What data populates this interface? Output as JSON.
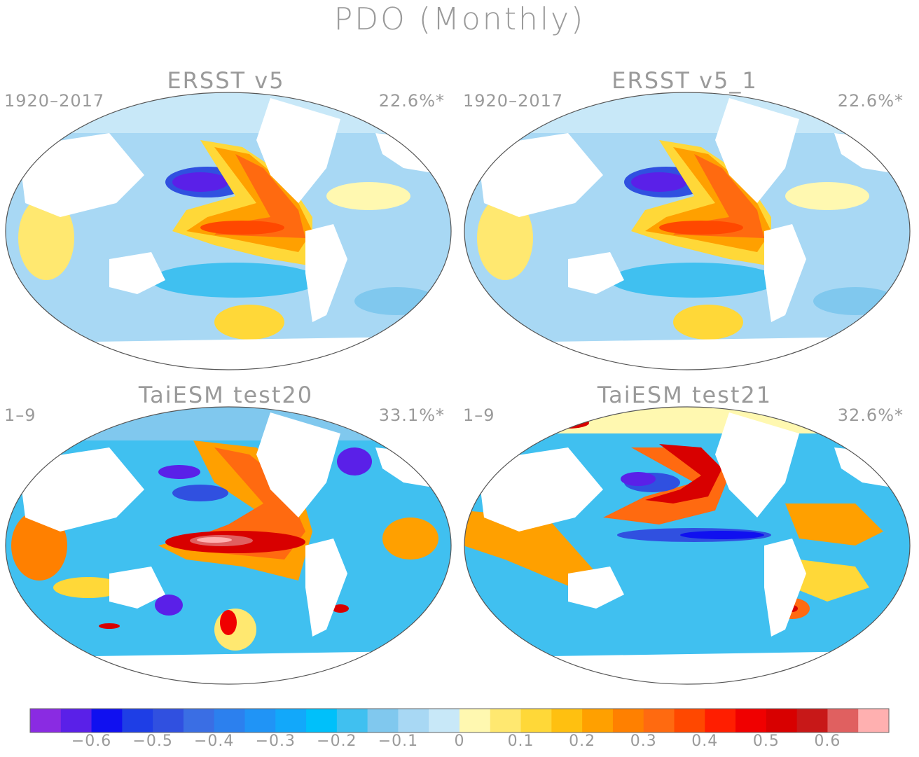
{
  "figure": {
    "title": "PDO (Monthly)"
  },
  "panels": [
    {
      "name": "ERSST v5",
      "period": "1920–2017",
      "pct": "22.6%*"
    },
    {
      "name": "ERSST v5_1",
      "period": "1920–2017",
      "pct": "22.6%*"
    },
    {
      "name": "TaiESM test20",
      "period": "1–9",
      "pct": "33.1%*"
    },
    {
      "name": "TaiESM test21",
      "period": "1–9",
      "pct": "32.6%*"
    }
  ],
  "colorbar": {
    "colors": [
      "#8a2be2",
      "#5a20e8",
      "#1010f0",
      "#1e3ee6",
      "#3050e0",
      "#3a6ee4",
      "#2c80ee",
      "#2094f6",
      "#12a8fa",
      "#00c0fa",
      "#40c0f0",
      "#80c8ee",
      "#a8d8f4",
      "#c8e8f8",
      "#fff8b0",
      "#ffe870",
      "#ffd838",
      "#ffc010",
      "#ffa000",
      "#ff8000",
      "#ff6a10",
      "#ff4800",
      "#ff1e00",
      "#f00000",
      "#d80000",
      "#c81818",
      "#e06060",
      "#ffb0b0"
    ],
    "tick_values": [
      -0.6,
      -0.5,
      -0.4,
      -0.3,
      -0.2,
      -0.1,
      0,
      0.1,
      0.2,
      0.3,
      0.4,
      0.5,
      0.6
    ],
    "tick_labels": [
      "−0.6",
      "−0.5",
      "−0.4",
      "−0.3",
      "−0.2",
      "−0.1",
      "0",
      "0.1",
      "0.2",
      "0.3",
      "0.4",
      "0.5",
      "0.6"
    ]
  }
}
